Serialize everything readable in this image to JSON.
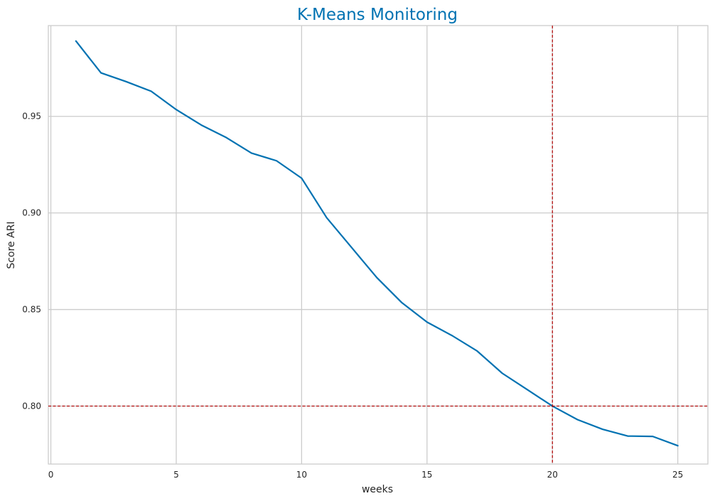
{
  "chart_data": {
    "type": "line",
    "title": "K-Means Monitoring",
    "xlabel": "weeks",
    "ylabel": "Score ARI",
    "xlim": [
      -0.1,
      26.2
    ],
    "ylim": [
      0.77,
      0.997
    ],
    "xticks": [
      0,
      5,
      10,
      15,
      20,
      25
    ],
    "xtick_labels": [
      "0",
      "5",
      "10",
      "15",
      "20",
      "25"
    ],
    "yticks": [
      0.8,
      0.85,
      0.9,
      0.95
    ],
    "ytick_labels": [
      "0.80",
      "0.85",
      "0.90",
      "0.95"
    ],
    "grid": true,
    "series": [
      {
        "x": [
          1,
          2,
          3,
          4,
          5,
          6,
          7,
          8,
          9,
          10,
          11,
          12,
          13,
          14,
          15,
          16,
          17,
          18,
          19,
          20,
          21,
          22,
          23,
          24,
          25
        ],
        "y": [
          0.989,
          0.9725,
          0.968,
          0.963,
          0.9535,
          0.9455,
          0.939,
          0.931,
          0.927,
          0.918,
          0.8975,
          0.882,
          0.8665,
          0.8535,
          0.8435,
          0.8365,
          0.8285,
          0.817,
          0.8085,
          0.8,
          0.793,
          0.788,
          0.7845,
          0.7843,
          0.7795
        ],
        "color": "#0072b2"
      }
    ],
    "reference_lines": [
      {
        "orientation": "horizontal",
        "value": 0.8,
        "color": "#b30000",
        "style": "dashed"
      },
      {
        "orientation": "vertical",
        "value": 20,
        "color": "#b30000",
        "style": "dashed"
      }
    ],
    "colors": {
      "title": "#0072b2",
      "grid": "#cccccc",
      "frame": "#cccccc",
      "text": "#262626"
    }
  }
}
